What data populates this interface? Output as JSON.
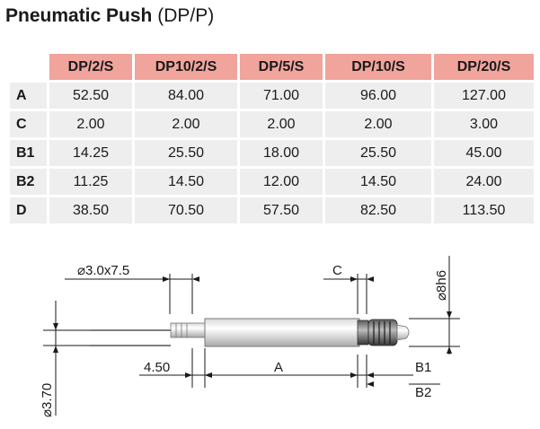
{
  "title": {
    "main": "Pneumatic Push",
    "sub": "(DP/P)"
  },
  "table": {
    "columns": [
      "DP/2/S",
      "DP10/2/S",
      "DP/5/S",
      "DP/10/S",
      "DP/20/S"
    ],
    "rows": [
      {
        "label": "A",
        "values": [
          "52.50",
          "84.00",
          "71.00",
          "96.00",
          "127.00"
        ]
      },
      {
        "label": "C",
        "values": [
          "2.00",
          "2.00",
          "2.00",
          "2.00",
          "3.00"
        ]
      },
      {
        "label": "B1",
        "values": [
          "14.25",
          "25.50",
          "18.00",
          "25.50",
          "45.00"
        ]
      },
      {
        "label": "B2",
        "values": [
          "11.25",
          "14.50",
          "12.00",
          "14.50",
          "24.00"
        ]
      },
      {
        "label": "D",
        "values": [
          "38.50",
          "70.50",
          "57.50",
          "82.50",
          "113.50"
        ]
      }
    ]
  },
  "drawing": {
    "tube_dim": "⌀3.0x7.5",
    "shaft_dim": "⌀3.70",
    "c_label": "C",
    "thread_dim": "⌀8h6",
    "length_450": "4.50",
    "a_label": "A",
    "b1_label": "B1",
    "b2_label": "B2"
  }
}
